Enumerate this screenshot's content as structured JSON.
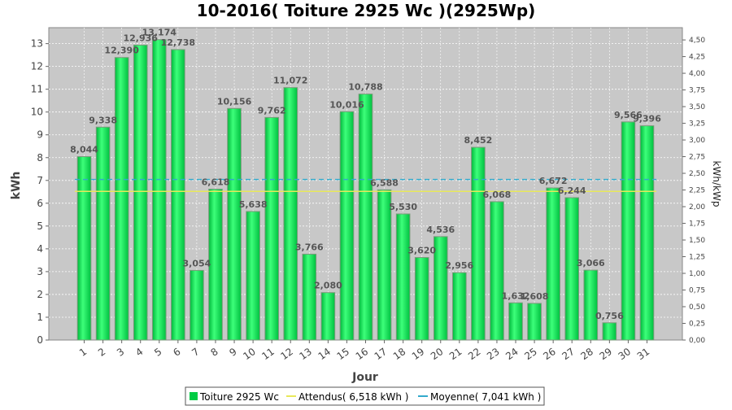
{
  "chart_data": {
    "type": "bar",
    "title": "10-2016( Toiture 2925 Wc )(2925Wp)",
    "xlabel": "Jour",
    "ylabel": "kWh",
    "y2label": "kWh/kWp",
    "categories": [
      "1",
      "2",
      "3",
      "4",
      "5",
      "6",
      "7",
      "8",
      "9",
      "10",
      "11",
      "12",
      "13",
      "14",
      "15",
      "16",
      "17",
      "18",
      "19",
      "20",
      "21",
      "22",
      "23",
      "24",
      "25",
      "26",
      "27",
      "28",
      "29",
      "30",
      "31"
    ],
    "series": [
      {
        "name": "Toiture 2925 Wc",
        "color": "#00cc44",
        "values": [
          8.044,
          9.338,
          12.39,
          12.936,
          13.174,
          12.738,
          3.054,
          6.618,
          10.156,
          5.638,
          9.762,
          11.072,
          3.766,
          2.08,
          10.016,
          10.788,
          6.588,
          5.53,
          3.62,
          4.536,
          2.956,
          8.452,
          6.068,
          1.632,
          1.608,
          6.672,
          6.244,
          3.066,
          0.756,
          9.566,
          9.396
        ],
        "labels": [
          "8,044",
          "9,338",
          "12,390",
          "12,936",
          "13,174",
          "12,738",
          "3,054",
          "6,618",
          "10,156",
          "5,638",
          "9,762",
          "11,072",
          "3,766",
          "2,080",
          "10,016",
          "10,788",
          "6,588",
          "5,530",
          "3,620",
          "4,536",
          "2,956",
          "8,452",
          "6,068",
          "1,632",
          "1,608",
          "6,672",
          "6,244",
          "3,066",
          "0,756",
          "9,566",
          "9,396"
        ]
      }
    ],
    "reference_lines": [
      {
        "name": "Attendus( 6,518 kWh )",
        "value": 6.518,
        "color": "#e8e85a"
      },
      {
        "name": "Moyenne( 7,041 kWh )",
        "value": 7.041,
        "color": "#33aacc"
      }
    ],
    "ylim": [
      0,
      13.7
    ],
    "yticks": [
      0,
      1,
      2,
      3,
      4,
      5,
      6,
      7,
      8,
      9,
      10,
      11,
      12,
      13
    ],
    "y2lim": [
      0,
      4.684
    ],
    "y2ticks": [
      "0,00",
      "0,25",
      "0,50",
      "0,75",
      "1,00",
      "1,25",
      "1,50",
      "1,75",
      "2,00",
      "2,25",
      "2,50",
      "2,75",
      "3,00",
      "3,25",
      "3,50",
      "3,75",
      "4,00",
      "4,25",
      "4,50"
    ],
    "grid": true,
    "legend_position": "bottom",
    "plot_background": "#c8c8c8"
  }
}
